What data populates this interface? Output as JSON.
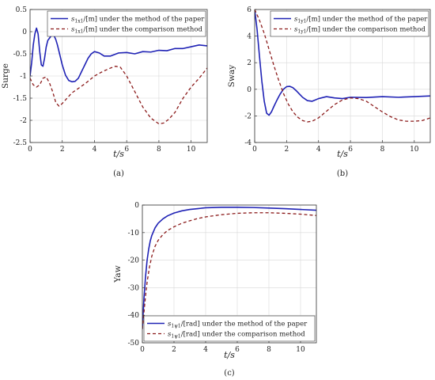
{
  "colors": {
    "paper": "#1f22b5",
    "comparison": "#8b1a1a",
    "axis": "#333333",
    "grid": "#d8d8d8"
  },
  "chart_data": [
    {
      "id": "a",
      "type": "line",
      "panel_label": "(a)",
      "ylabel": "Surge",
      "xlabel": "t/s",
      "xlim": [
        0,
        11
      ],
      "ylim": [
        -2.5,
        0.5
      ],
      "xticks": [
        0,
        2,
        4,
        6,
        8,
        10
      ],
      "yticks": [
        0.5,
        0,
        -0.5,
        -1,
        -1.5,
        -2,
        -2.5
      ],
      "grid": true,
      "legend_position": "top-right",
      "series": [
        {
          "name": "s_{1x1}/[m] under the method of the paper",
          "legend_var": "s",
          "legend_sub": "1x1",
          "legend_unit": "/[m]",
          "legend_text": " under the method of the paper",
          "style": "solid",
          "color_key": "paper",
          "x": [
            0,
            0.1,
            0.2,
            0.3,
            0.4,
            0.5,
            0.6,
            0.7,
            0.8,
            0.9,
            1.0,
            1.1,
            1.2,
            1.3,
            1.4,
            1.5,
            1.6,
            1.7,
            1.8,
            2.0,
            2.2,
            2.4,
            2.6,
            2.8,
            3.0,
            3.2,
            3.4,
            3.6,
            3.8,
            4.0,
            4.3,
            4.6,
            5.0,
            5.5,
            6.0,
            6.5,
            7.0,
            7.5,
            8.0,
            8.5,
            9.0,
            9.5,
            10.0,
            10.5,
            11.0
          ],
          "y": [
            -1.0,
            -0.7,
            -0.3,
            -0.05,
            0.08,
            -0.05,
            -0.45,
            -0.75,
            -0.78,
            -0.6,
            -0.35,
            -0.2,
            -0.15,
            -0.1,
            -0.08,
            -0.1,
            -0.18,
            -0.3,
            -0.45,
            -0.75,
            -0.98,
            -1.1,
            -1.13,
            -1.12,
            -1.05,
            -0.9,
            -0.75,
            -0.6,
            -0.5,
            -0.45,
            -0.48,
            -0.55,
            -0.55,
            -0.48,
            -0.47,
            -0.5,
            -0.45,
            -0.46,
            -0.42,
            -0.43,
            -0.38,
            -0.38,
            -0.34,
            -0.3,
            -0.32
          ]
        },
        {
          "name": "s_{1x1}/[m] under the comparison method",
          "legend_var": "s",
          "legend_sub": "1x1",
          "legend_unit": "/[m]",
          "legend_text": " under the comparison method",
          "style": "dashed",
          "color_key": "comparison",
          "x": [
            0,
            0.2,
            0.4,
            0.6,
            0.8,
            1.0,
            1.2,
            1.4,
            1.6,
            1.8,
            2.0,
            2.3,
            2.6,
            3.0,
            3.5,
            4.0,
            4.5,
            5.0,
            5.3,
            5.6,
            6.0,
            6.5,
            7.0,
            7.5,
            8.0,
            8.3,
            8.6,
            9.0,
            9.5,
            10.0,
            10.5,
            11.0
          ],
          "y": [
            -1.05,
            -1.2,
            -1.25,
            -1.2,
            -1.05,
            -1.02,
            -1.15,
            -1.35,
            -1.6,
            -1.68,
            -1.62,
            -1.5,
            -1.38,
            -1.28,
            -1.15,
            -1.0,
            -0.9,
            -0.82,
            -0.78,
            -0.8,
            -1.0,
            -1.35,
            -1.7,
            -1.95,
            -2.08,
            -2.06,
            -1.98,
            -1.82,
            -1.5,
            -1.25,
            -1.05,
            -0.82
          ]
        }
      ]
    },
    {
      "id": "b",
      "type": "line",
      "panel_label": "(b)",
      "ylabel": "Sway",
      "xlabel": "t/s",
      "xlim": [
        0,
        11
      ],
      "ylim": [
        -4,
        6
      ],
      "xticks": [
        0,
        2,
        4,
        6,
        8,
        10
      ],
      "yticks": [
        6,
        4,
        2,
        0,
        -2,
        -4
      ],
      "grid": true,
      "legend_position": "top-right",
      "series": [
        {
          "name": "s_{1y1}/[m] under the method of the paper",
          "legend_var": "s",
          "legend_sub": "1y1",
          "legend_unit": "/[m]",
          "legend_text": " under the method of the paper",
          "style": "solid",
          "color_key": "paper",
          "x": [
            0,
            0.15,
            0.3,
            0.45,
            0.6,
            0.75,
            0.9,
            1.05,
            1.2,
            1.4,
            1.6,
            1.8,
            2.0,
            2.2,
            2.4,
            2.6,
            2.8,
            3.0,
            3.3,
            3.6,
            4.0,
            4.5,
            5.0,
            5.5,
            6.0,
            7.0,
            8.0,
            9.0,
            10.0,
            11.0
          ],
          "y": [
            6.0,
            4.5,
            2.5,
            0.6,
            -0.9,
            -1.8,
            -1.95,
            -1.7,
            -1.3,
            -0.8,
            -0.35,
            0.0,
            0.2,
            0.22,
            0.12,
            -0.1,
            -0.35,
            -0.6,
            -0.85,
            -0.9,
            -0.7,
            -0.55,
            -0.65,
            -0.7,
            -0.6,
            -0.62,
            -0.55,
            -0.6,
            -0.55,
            -0.5
          ]
        },
        {
          "name": "s_{1y1}/[m] under the comparison method",
          "legend_var": "s",
          "legend_sub": "1y1",
          "legend_unit": "/[m]",
          "legend_text": " under the comparison method",
          "style": "dashed",
          "color_key": "comparison",
          "x": [
            0,
            0.3,
            0.6,
            0.9,
            1.2,
            1.5,
            1.8,
            2.1,
            2.4,
            2.7,
            3.0,
            3.3,
            3.6,
            4.0,
            4.5,
            5.0,
            5.5,
            6.0,
            6.5,
            7.0,
            7.5,
            8.0,
            8.5,
            9.0,
            9.5,
            10.0,
            10.5,
            11.0
          ],
          "y": [
            6.0,
            5.2,
            4.2,
            3.0,
            1.8,
            0.7,
            -0.3,
            -1.1,
            -1.7,
            -2.1,
            -2.35,
            -2.45,
            -2.4,
            -2.15,
            -1.65,
            -1.15,
            -0.8,
            -0.65,
            -0.7,
            -0.9,
            -1.3,
            -1.7,
            -2.05,
            -2.3,
            -2.4,
            -2.4,
            -2.35,
            -2.15
          ]
        }
      ]
    },
    {
      "id": "c",
      "type": "line",
      "panel_label": "(c)",
      "ylabel": "Yaw",
      "xlabel": "t/s",
      "xlim": [
        0,
        11
      ],
      "ylim": [
        -50,
        0
      ],
      "xticks": [
        0,
        2,
        4,
        6,
        8,
        10
      ],
      "yticks": [
        0,
        -10,
        -20,
        -30,
        -40,
        -50
      ],
      "grid": true,
      "legend_position": "bottom-right",
      "series": [
        {
          "name": "s_{1ψ1}/[rad] under the method of the paper",
          "legend_var": "s",
          "legend_sub": "1ψ1",
          "legend_unit": "/[rad]",
          "legend_text": " under the method of the paper",
          "style": "solid",
          "color_key": "paper",
          "x": [
            0,
            0.1,
            0.2,
            0.3,
            0.4,
            0.5,
            0.6,
            0.8,
            1.0,
            1.3,
            1.6,
            2.0,
            2.5,
            3.0,
            3.5,
            4.0,
            5.0,
            6.0,
            7.0,
            8.0,
            9.0,
            10.0,
            11.0
          ],
          "y": [
            -45.0,
            -34.0,
            -26.0,
            -20.0,
            -16.0,
            -13.0,
            -11.0,
            -8.3,
            -6.6,
            -5.0,
            -3.9,
            -2.9,
            -2.1,
            -1.6,
            -1.3,
            -1.0,
            -0.8,
            -0.8,
            -0.9,
            -1.1,
            -1.3,
            -1.6,
            -1.9
          ]
        },
        {
          "name": "s_{1ψ1}/[rad] under the comparison method",
          "legend_var": "s",
          "legend_sub": "1ψ1",
          "legend_unit": "/[rad]",
          "legend_text": " under the comparison method",
          "style": "dashed",
          "color_key": "comparison",
          "x": [
            0,
            0.1,
            0.2,
            0.3,
            0.45,
            0.6,
            0.8,
            1.0,
            1.3,
            1.6,
            2.0,
            2.5,
            3.0,
            3.5,
            4.0,
            5.0,
            6.0,
            7.0,
            8.0,
            9.0,
            10.0,
            11.0
          ],
          "y": [
            -45.0,
            -39.0,
            -33.0,
            -28.0,
            -22.5,
            -18.5,
            -15.0,
            -12.8,
            -10.7,
            -9.2,
            -7.9,
            -6.6,
            -5.7,
            -4.9,
            -4.3,
            -3.5,
            -3.0,
            -2.8,
            -2.8,
            -3.0,
            -3.3,
            -3.8
          ]
        }
      ]
    }
  ]
}
